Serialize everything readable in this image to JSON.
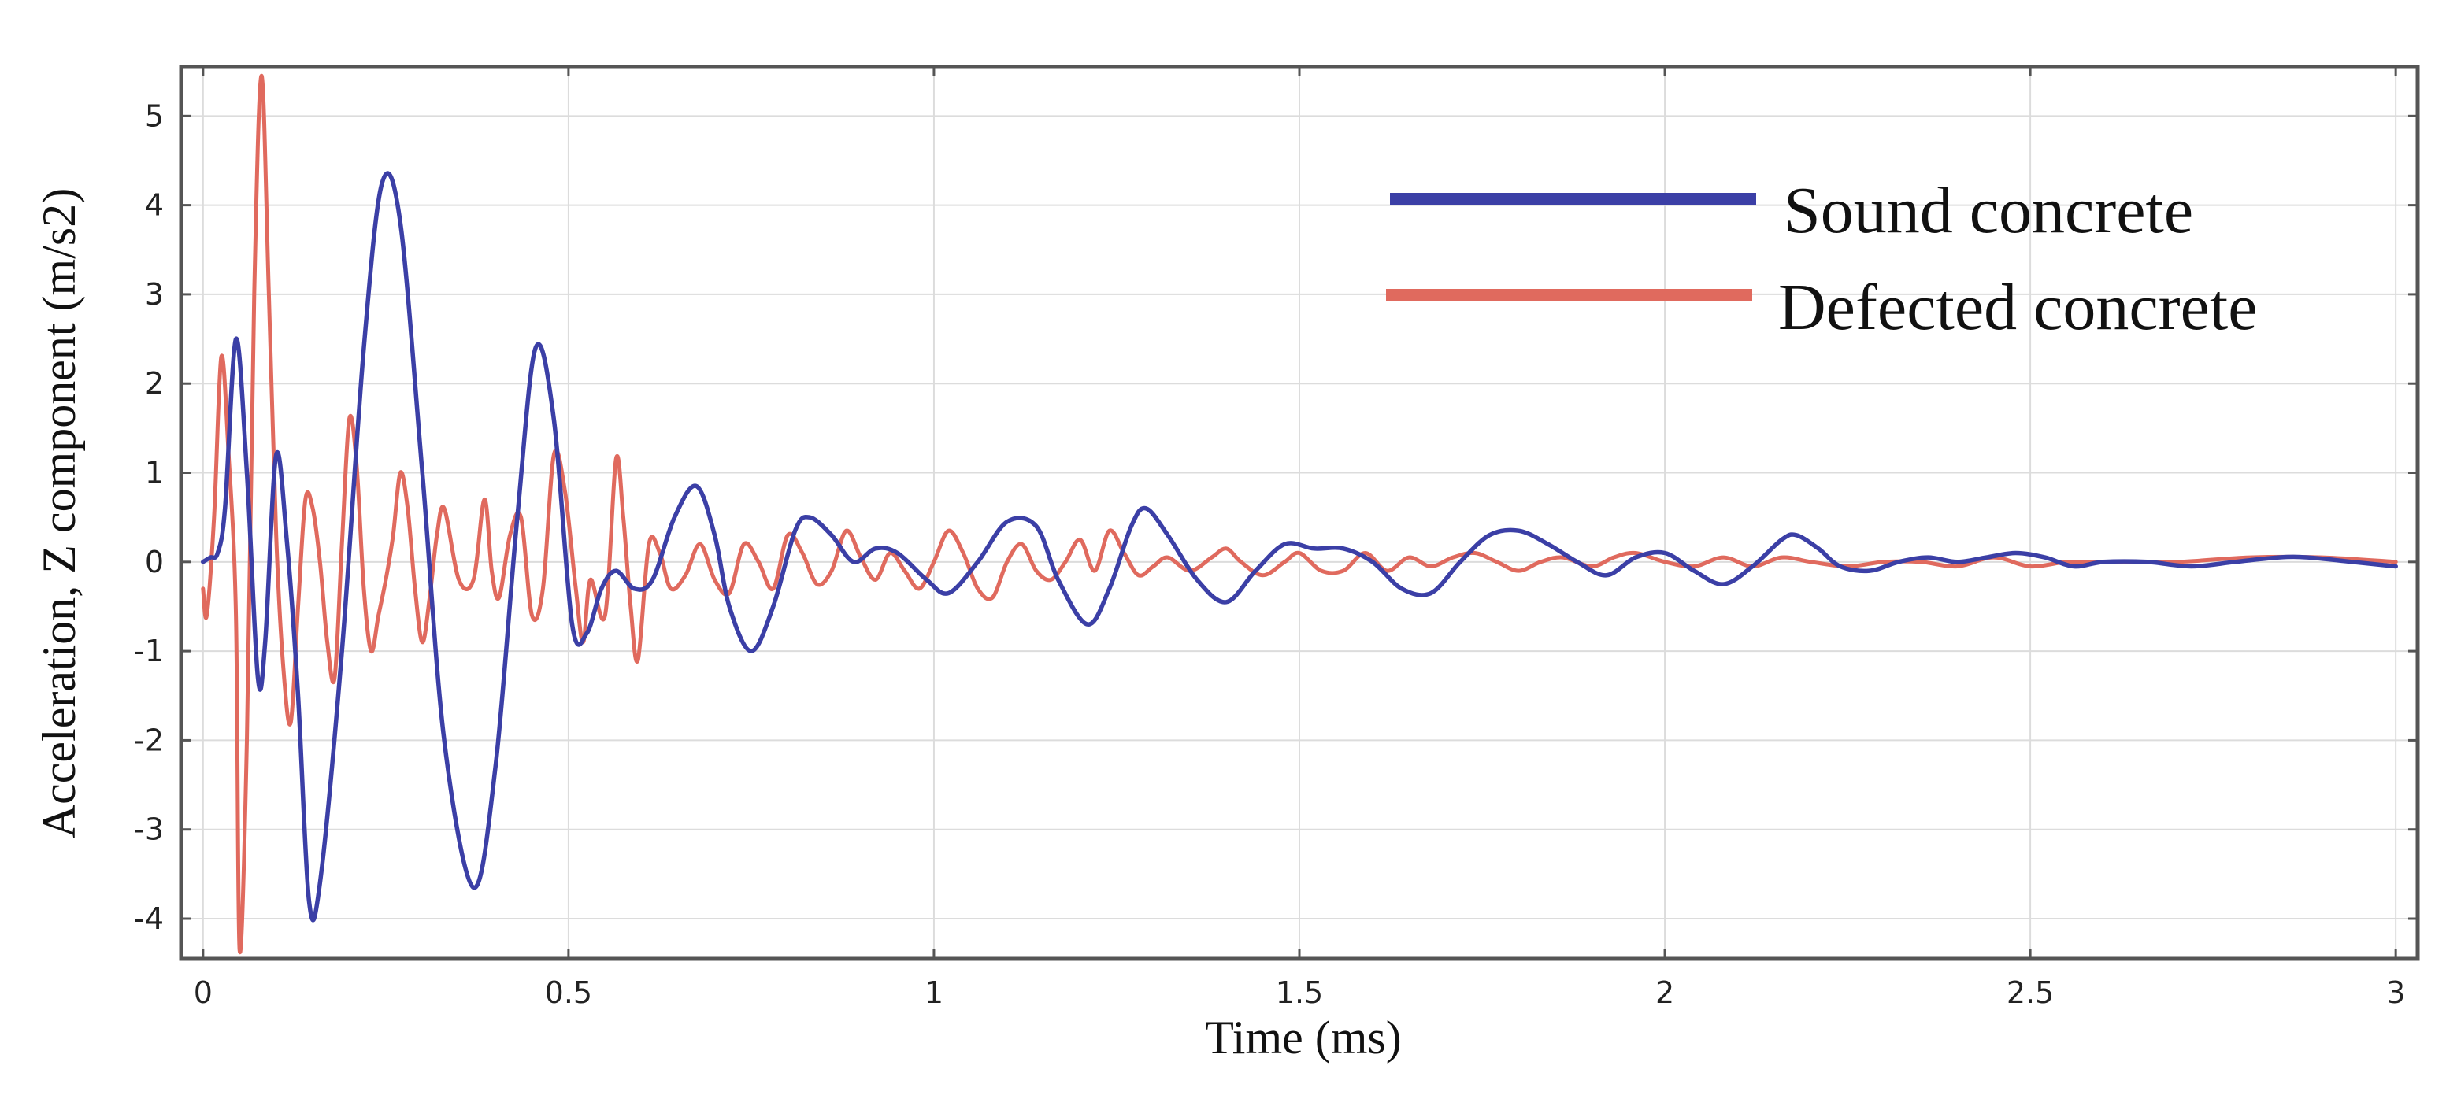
{
  "chart_data": {
    "type": "line",
    "title": "",
    "xlabel": "Time (ms)",
    "ylabel": "Acceleration, Z component (m/s2)",
    "xlim": [
      -0.03,
      3.03
    ],
    "ylim": [
      -4.45,
      5.55
    ],
    "xticks": [
      0,
      0.5,
      1,
      1.5,
      2,
      2.5,
      3
    ],
    "xtick_labels": [
      "0",
      "0.5",
      "1",
      "1.5",
      "2",
      "2.5",
      "3"
    ],
    "yticks": [
      -4,
      -3,
      -2,
      -1,
      0,
      1,
      2,
      3,
      4,
      5
    ],
    "ytick_labels": [
      "-4",
      "-3",
      "-2",
      "-1",
      "0",
      "1",
      "2",
      "3",
      "4",
      "5"
    ],
    "grid": true,
    "legend_position": "top-right",
    "series": [
      {
        "name": "Sound concrete",
        "color": "#3b3fa6",
        "points": [
          [
            0,
            0
          ],
          [
            0.01,
            0.05
          ],
          [
            0.02,
            0.1
          ],
          [
            0.03,
            0.6
          ],
          [
            0.045,
            2.5
          ],
          [
            0.06,
            1.0
          ],
          [
            0.075,
            -1.3
          ],
          [
            0.085,
            -0.9
          ],
          [
            0.1,
            1.2
          ],
          [
            0.115,
            0.2
          ],
          [
            0.13,
            -1.5
          ],
          [
            0.145,
            -3.8
          ],
          [
            0.16,
            -3.6
          ],
          [
            0.19,
            -1.0
          ],
          [
            0.22,
            2.4
          ],
          [
            0.245,
            4.25
          ],
          [
            0.27,
            3.8
          ],
          [
            0.3,
            1.0
          ],
          [
            0.33,
            -2.0
          ],
          [
            0.37,
            -3.65
          ],
          [
            0.4,
            -2.3
          ],
          [
            0.43,
            0.5
          ],
          [
            0.455,
            2.4
          ],
          [
            0.48,
            1.6
          ],
          [
            0.505,
            -0.7
          ],
          [
            0.525,
            -0.8
          ],
          [
            0.545,
            -0.3
          ],
          [
            0.565,
            -0.1
          ],
          [
            0.59,
            -0.3
          ],
          [
            0.615,
            -0.2
          ],
          [
            0.645,
            0.5
          ],
          [
            0.675,
            0.85
          ],
          [
            0.7,
            0.3
          ],
          [
            0.72,
            -0.5
          ],
          [
            0.75,
            -1.0
          ],
          [
            0.78,
            -0.5
          ],
          [
            0.81,
            0.35
          ],
          [
            0.83,
            0.5
          ],
          [
            0.86,
            0.3
          ],
          [
            0.89,
            0.0
          ],
          [
            0.92,
            0.15
          ],
          [
            0.95,
            0.1
          ],
          [
            0.99,
            -0.2
          ],
          [
            1.02,
            -0.35
          ],
          [
            1.06,
            0.0
          ],
          [
            1.1,
            0.45
          ],
          [
            1.14,
            0.4
          ],
          [
            1.17,
            -0.2
          ],
          [
            1.21,
            -0.7
          ],
          [
            1.24,
            -0.3
          ],
          [
            1.27,
            0.4
          ],
          [
            1.29,
            0.6
          ],
          [
            1.32,
            0.3
          ],
          [
            1.36,
            -0.2
          ],
          [
            1.4,
            -0.45
          ],
          [
            1.44,
            -0.1
          ],
          [
            1.48,
            0.2
          ],
          [
            1.52,
            0.15
          ],
          [
            1.56,
            0.15
          ],
          [
            1.6,
            0.0
          ],
          [
            1.64,
            -0.3
          ],
          [
            1.68,
            -0.35
          ],
          [
            1.72,
            0.0
          ],
          [
            1.76,
            0.3
          ],
          [
            1.8,
            0.35
          ],
          [
            1.84,
            0.2
          ],
          [
            1.88,
            0.0
          ],
          [
            1.92,
            -0.15
          ],
          [
            1.96,
            0.05
          ],
          [
            2.0,
            0.1
          ],
          [
            2.04,
            -0.1
          ],
          [
            2.08,
            -0.25
          ],
          [
            2.12,
            -0.05
          ],
          [
            2.16,
            0.25
          ],
          [
            2.18,
            0.3
          ],
          [
            2.21,
            0.15
          ],
          [
            2.24,
            -0.05
          ],
          [
            2.28,
            -0.1
          ],
          [
            2.32,
            0.0
          ],
          [
            2.36,
            0.05
          ],
          [
            2.4,
            0.0
          ],
          [
            2.44,
            0.05
          ],
          [
            2.48,
            0.1
          ],
          [
            2.52,
            0.05
          ],
          [
            2.56,
            -0.05
          ],
          [
            2.6,
            0.0
          ],
          [
            2.66,
            0.0
          ],
          [
            2.72,
            -0.05
          ],
          [
            2.78,
            0.0
          ],
          [
            2.84,
            0.05
          ],
          [
            2.88,
            0.05
          ],
          [
            2.94,
            0.0
          ],
          [
            3.0,
            -0.05
          ]
        ]
      },
      {
        "name": "Defected concrete",
        "color": "#e06a5e",
        "points": [
          [
            0,
            -0.3
          ],
          [
            0.005,
            -0.6
          ],
          [
            0.015,
            0.5
          ],
          [
            0.025,
            2.3
          ],
          [
            0.035,
            1.2
          ],
          [
            0.045,
            -0.6
          ],
          [
            0.05,
            -4.35
          ],
          [
            0.06,
            -2.0
          ],
          [
            0.07,
            3.0
          ],
          [
            0.08,
            5.45
          ],
          [
            0.09,
            3.0
          ],
          [
            0.1,
            0.3
          ],
          [
            0.11,
            -1.2
          ],
          [
            0.12,
            -1.8
          ],
          [
            0.13,
            -0.5
          ],
          [
            0.14,
            0.7
          ],
          [
            0.15,
            0.6
          ],
          [
            0.16,
            0.0
          ],
          [
            0.17,
            -0.9
          ],
          [
            0.18,
            -1.3
          ],
          [
            0.19,
            0.2
          ],
          [
            0.2,
            1.6
          ],
          [
            0.21,
            1.1
          ],
          [
            0.22,
            -0.3
          ],
          [
            0.23,
            -1.0
          ],
          [
            0.24,
            -0.6
          ],
          [
            0.25,
            -0.2
          ],
          [
            0.26,
            0.3
          ],
          [
            0.27,
            1.0
          ],
          [
            0.28,
            0.6
          ],
          [
            0.29,
            -0.3
          ],
          [
            0.3,
            -0.9
          ],
          [
            0.31,
            -0.4
          ],
          [
            0.32,
            0.3
          ],
          [
            0.33,
            0.6
          ],
          [
            0.35,
            -0.2
          ],
          [
            0.37,
            -0.2
          ],
          [
            0.385,
            0.7
          ],
          [
            0.395,
            -0.1
          ],
          [
            0.405,
            -0.4
          ],
          [
            0.42,
            0.3
          ],
          [
            0.435,
            0.5
          ],
          [
            0.45,
            -0.6
          ],
          [
            0.465,
            -0.3
          ],
          [
            0.48,
            1.2
          ],
          [
            0.495,
            0.8
          ],
          [
            0.51,
            -0.3
          ],
          [
            0.52,
            -0.9
          ],
          [
            0.53,
            -0.2
          ],
          [
            0.55,
            -0.6
          ],
          [
            0.565,
            1.15
          ],
          [
            0.575,
            0.5
          ],
          [
            0.585,
            -0.5
          ],
          [
            0.595,
            -1.1
          ],
          [
            0.61,
            0.2
          ],
          [
            0.625,
            0.1
          ],
          [
            0.64,
            -0.3
          ],
          [
            0.66,
            -0.15
          ],
          [
            0.68,
            0.2
          ],
          [
            0.7,
            -0.2
          ],
          [
            0.72,
            -0.35
          ],
          [
            0.74,
            0.2
          ],
          [
            0.76,
            0.0
          ],
          [
            0.78,
            -0.3
          ],
          [
            0.8,
            0.3
          ],
          [
            0.82,
            0.1
          ],
          [
            0.84,
            -0.25
          ],
          [
            0.86,
            -0.1
          ],
          [
            0.88,
            0.35
          ],
          [
            0.9,
            0.05
          ],
          [
            0.92,
            -0.2
          ],
          [
            0.94,
            0.1
          ],
          [
            0.96,
            -0.1
          ],
          [
            0.98,
            -0.3
          ],
          [
            1.0,
            0.0
          ],
          [
            1.02,
            0.35
          ],
          [
            1.04,
            0.1
          ],
          [
            1.06,
            -0.3
          ],
          [
            1.08,
            -0.4
          ],
          [
            1.1,
            0.0
          ],
          [
            1.12,
            0.2
          ],
          [
            1.14,
            -0.1
          ],
          [
            1.16,
            -0.2
          ],
          [
            1.18,
            0.0
          ],
          [
            1.2,
            0.25
          ],
          [
            1.22,
            -0.1
          ],
          [
            1.24,
            0.35
          ],
          [
            1.26,
            0.1
          ],
          [
            1.28,
            -0.15
          ],
          [
            1.3,
            -0.05
          ],
          [
            1.32,
            0.05
          ],
          [
            1.35,
            -0.1
          ],
          [
            1.38,
            0.05
          ],
          [
            1.4,
            0.15
          ],
          [
            1.42,
            0.0
          ],
          [
            1.45,
            -0.15
          ],
          [
            1.48,
            0.0
          ],
          [
            1.5,
            0.1
          ],
          [
            1.53,
            -0.1
          ],
          [
            1.56,
            -0.1
          ],
          [
            1.59,
            0.1
          ],
          [
            1.62,
            -0.1
          ],
          [
            1.65,
            0.05
          ],
          [
            1.68,
            -0.05
          ],
          [
            1.71,
            0.05
          ],
          [
            1.74,
            0.1
          ],
          [
            1.77,
            0.0
          ],
          [
            1.8,
            -0.1
          ],
          [
            1.83,
            0.0
          ],
          [
            1.86,
            0.05
          ],
          [
            1.9,
            -0.05
          ],
          [
            1.93,
            0.05
          ],
          [
            1.96,
            0.1
          ],
          [
            2.0,
            0.0
          ],
          [
            2.04,
            -0.05
          ],
          [
            2.08,
            0.05
          ],
          [
            2.12,
            -0.05
          ],
          [
            2.16,
            0.05
          ],
          [
            2.2,
            0.0
          ],
          [
            2.25,
            -0.05
          ],
          [
            2.3,
            0.0
          ],
          [
            2.35,
            0.0
          ],
          [
            2.4,
            -0.05
          ],
          [
            2.45,
            0.05
          ],
          [
            2.5,
            -0.05
          ],
          [
            2.55,
            0.0
          ],
          [
            2.6,
            0.0
          ],
          [
            2.7,
            0.0
          ],
          [
            2.8,
            0.05
          ],
          [
            2.9,
            0.05
          ],
          [
            3.0,
            0.0
          ]
        ]
      }
    ]
  }
}
